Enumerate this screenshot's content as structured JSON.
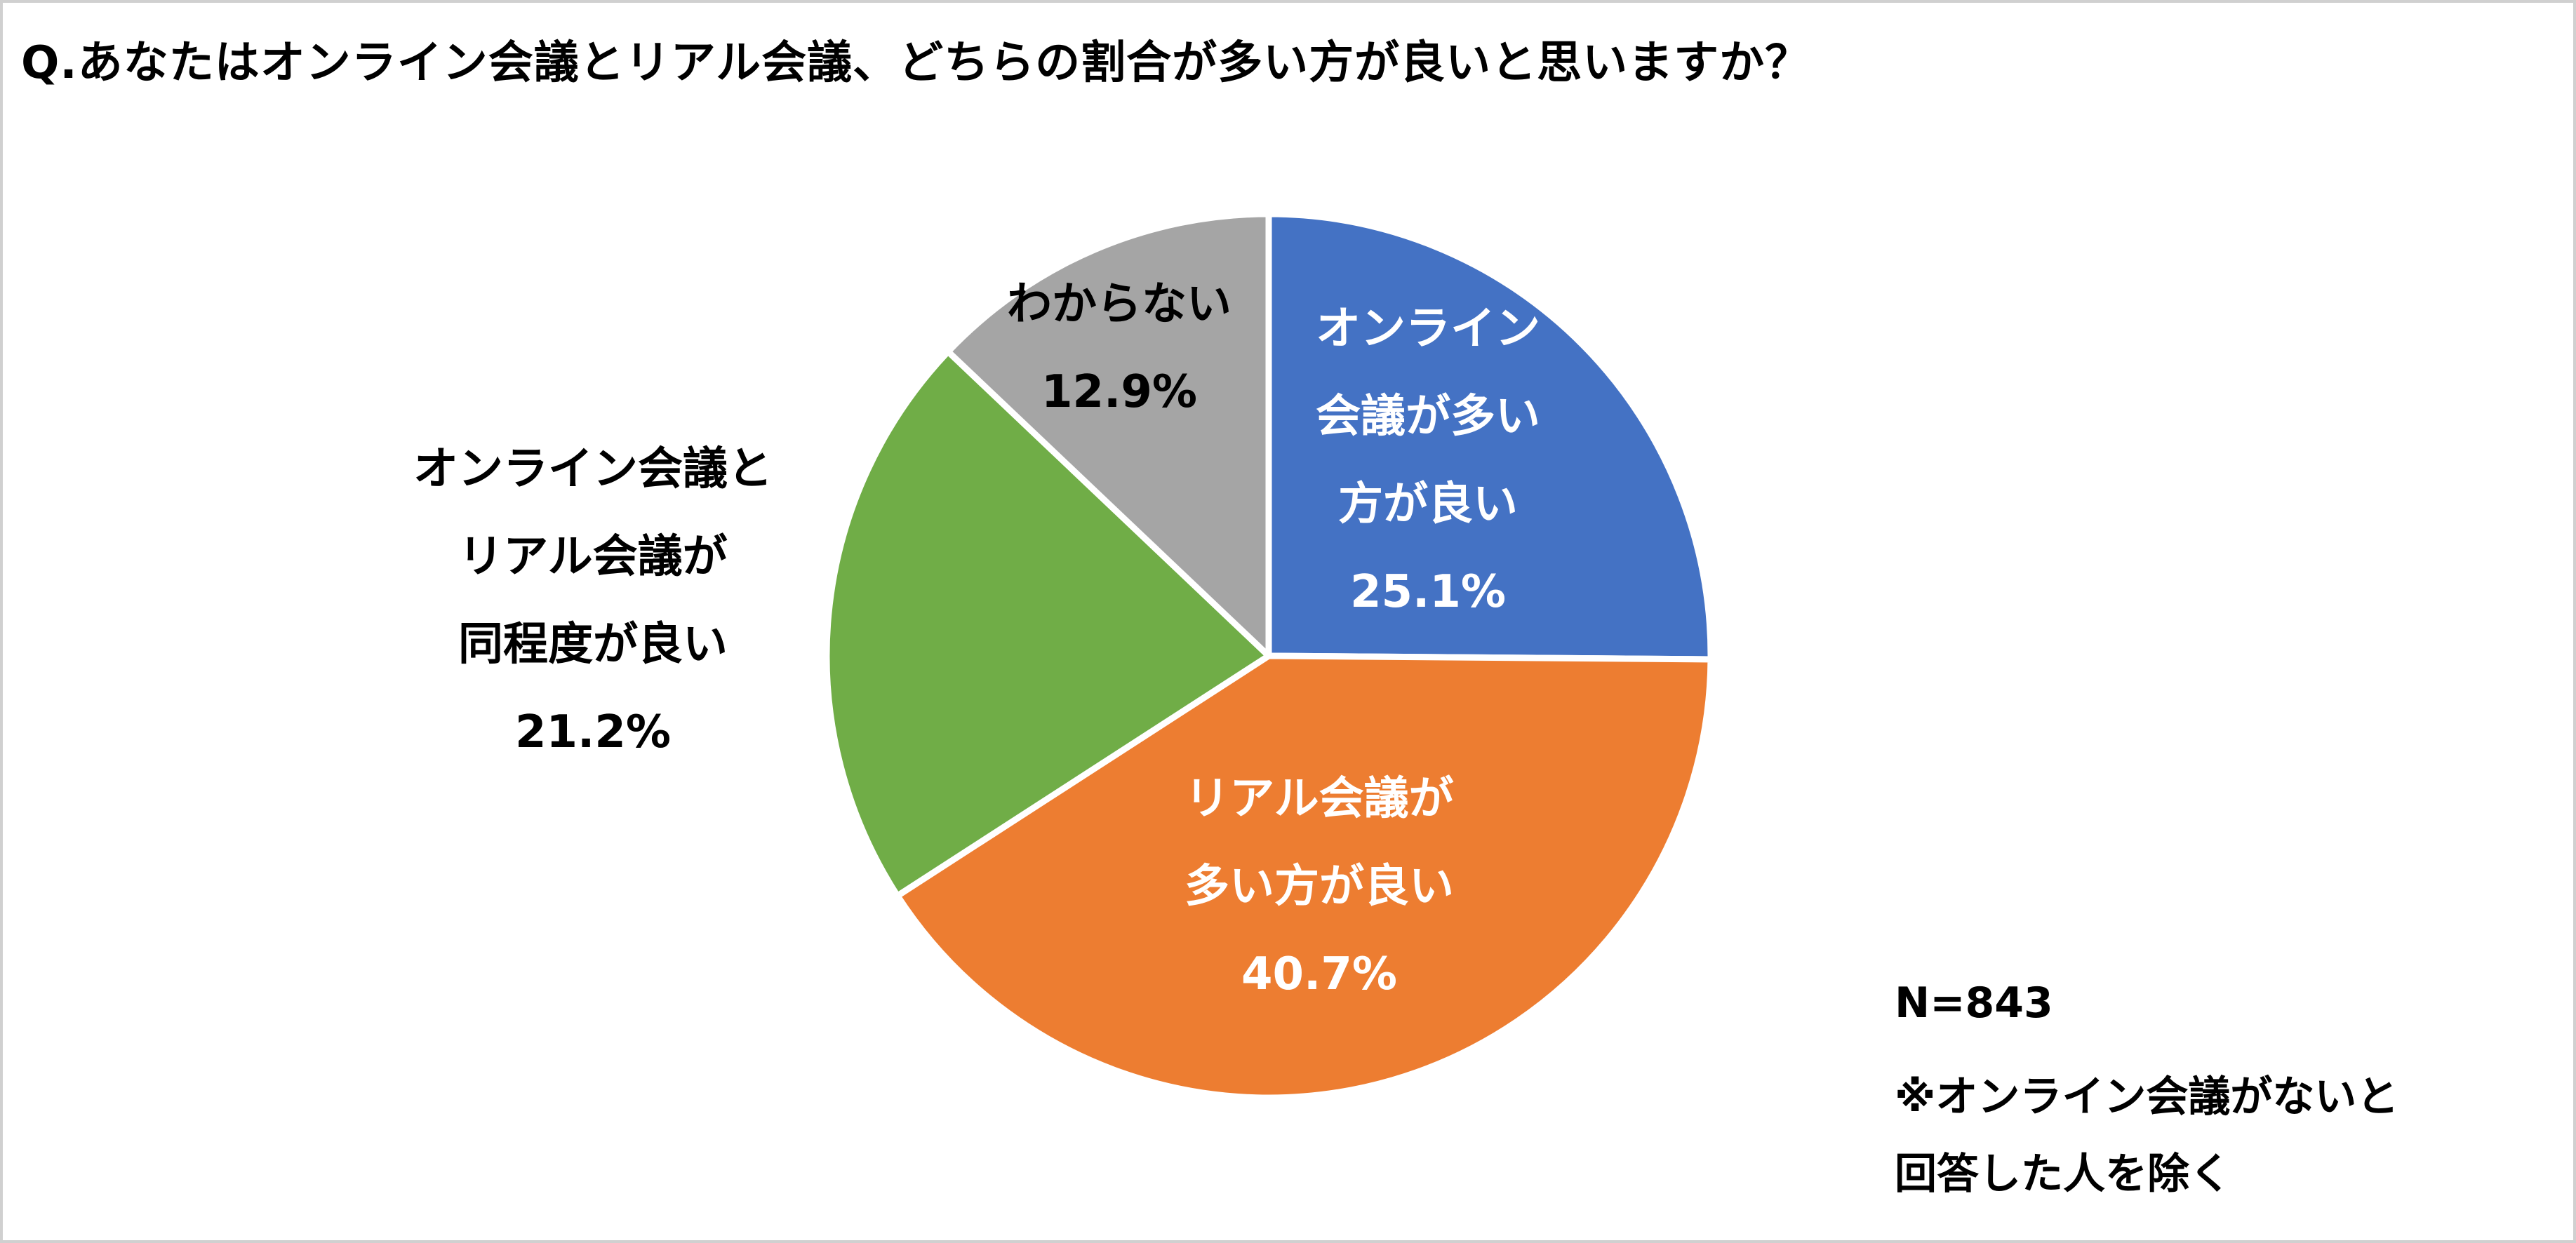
{
  "chart_data": {
    "type": "pie",
    "title": "Q.あなたはオンライン会議とリアル会議、どちらの割合が多い方が良いと思いますか？",
    "slices": [
      {
        "label": [
          "オンライン",
          "会議が多い",
          "方が良い"
        ],
        "percent_label": "25.1%",
        "value": 25.1,
        "color": "#4472C4",
        "text_color": "#ffffff"
      },
      {
        "label": [
          "リアル会議が",
          "多い方が良い"
        ],
        "percent_label": "40.7%",
        "value": 40.7,
        "color": "#ED7D31",
        "text_color": "#ffffff"
      },
      {
        "label": [
          "オンライン会議と",
          "リアル会議が",
          "同程度が良い"
        ],
        "percent_label": "21.2%",
        "value": 21.2,
        "color": "#70AD47",
        "text_color": "#000000"
      },
      {
        "label": [
          "わからない"
        ],
        "percent_label": "12.9%",
        "value": 12.9,
        "color": "#A5A5A5",
        "text_color": "#000000"
      }
    ],
    "start_angle_deg": 0,
    "direction": "clockwise"
  },
  "notes": {
    "n": "N=843",
    "line1": "※オンライン会議がないと",
    "line2": "回答した人を除く"
  }
}
